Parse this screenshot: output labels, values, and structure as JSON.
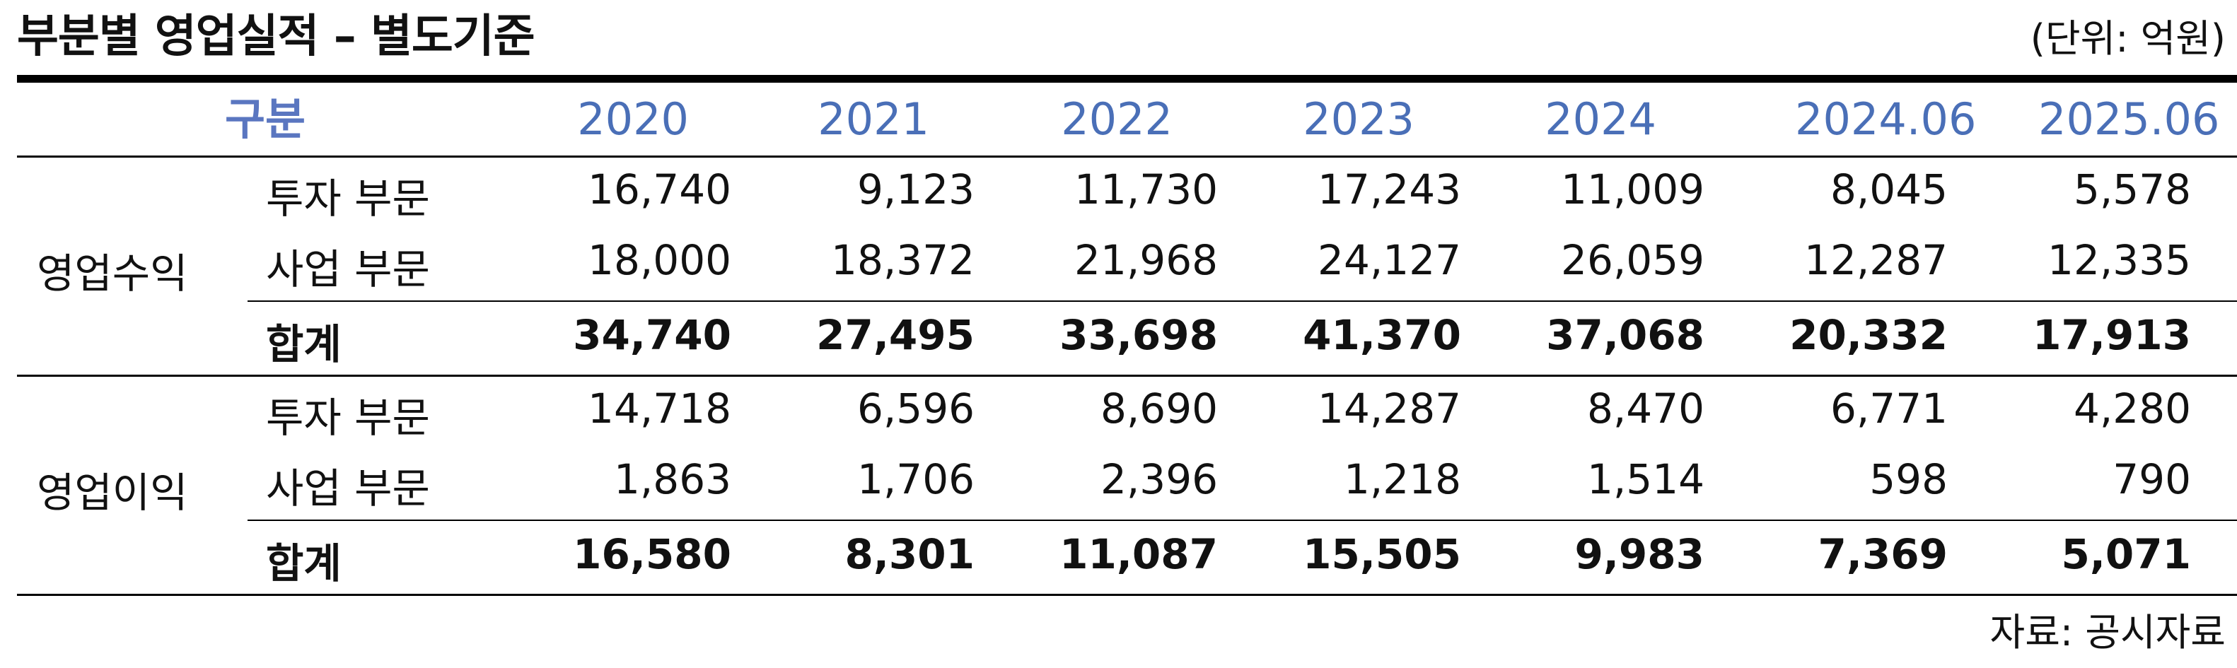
{
  "title": "부분별 영업실적 – 별도기준",
  "unit": "(단위: 억원)",
  "header": {
    "label": "구분",
    "years": [
      "2020",
      "2021",
      "2022",
      "2023",
      "2024",
      "2024.06",
      "2025.06"
    ]
  },
  "groups": [
    {
      "name": "영업수익",
      "rows": [
        {
          "label": "투자 부문",
          "values": [
            "16,740",
            "9,123",
            "11,730",
            "17,243",
            "11,009",
            "8,045",
            "5,578"
          ]
        },
        {
          "label": "사업 부문",
          "values": [
            "18,000",
            "18,372",
            "21,968",
            "24,127",
            "26,059",
            "12,287",
            "12,335"
          ]
        },
        {
          "label": "합계",
          "values": [
            "34,740",
            "27,495",
            "33,698",
            "41,370",
            "37,068",
            "20,332",
            "17,913"
          ]
        }
      ]
    },
    {
      "name": "영업이익",
      "rows": [
        {
          "label": "투자 부문",
          "values": [
            "14,718",
            "6,596",
            "8,690",
            "14,287",
            "8,470",
            "6,771",
            "4,280"
          ]
        },
        {
          "label": "사업 부문",
          "values": [
            "1,863",
            "1,706",
            "2,396",
            "1,218",
            "1,514",
            "598",
            "790"
          ]
        },
        {
          "label": "합계",
          "values": [
            "16,580",
            "8,301",
            "11,087",
            "15,505",
            "9,983",
            "7,369",
            "5,071"
          ]
        }
      ]
    }
  ],
  "source": "자료: 공시자료",
  "colors": {
    "header_text": "#4a6fb7",
    "rule": "#000000",
    "text": "#111111"
  }
}
